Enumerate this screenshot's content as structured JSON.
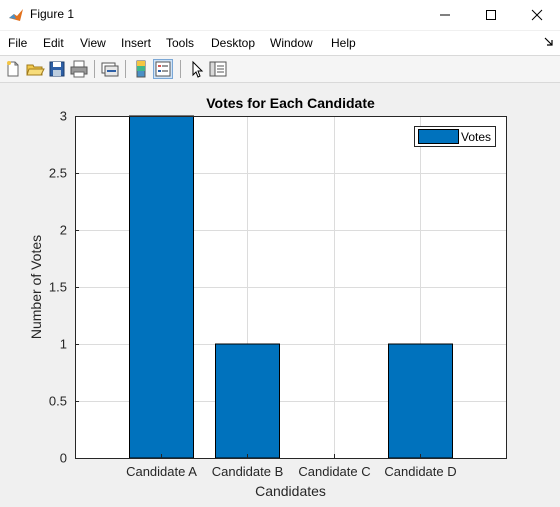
{
  "window": {
    "title": "Figure 1",
    "icon": "matlab-icon"
  },
  "menu": [
    "File",
    "Edit",
    "View",
    "Insert",
    "Tools",
    "Desktop",
    "Window",
    "Help"
  ],
  "toolbar_icons": [
    "new-figure-icon",
    "open-file-icon",
    "save-icon",
    "print-icon",
    "link-plot-icon",
    "colorbar-icon",
    "legend-icon",
    "pointer-icon",
    "property-editor-icon"
  ],
  "colors": {
    "bar": "#0072bd",
    "axes_bg": "#ffffff",
    "figure_bg": "#f0f0f0",
    "grid": "#dcdcdc"
  },
  "chart_data": {
    "type": "bar",
    "title": "Votes for Each Candidate",
    "xlabel": "Candidates",
    "ylabel": "Number of Votes",
    "categories": [
      "Candidate A",
      "Candidate B",
      "Candidate C",
      "Candidate D"
    ],
    "series": [
      {
        "name": "Votes",
        "values": [
          3,
          1,
          0,
          1
        ]
      }
    ],
    "ylim": [
      0,
      3
    ],
    "yticks": [
      "0",
      "0.5",
      "1",
      "1.5",
      "2",
      "2.5",
      "3"
    ],
    "grid": true,
    "legend_position": "top-right"
  }
}
